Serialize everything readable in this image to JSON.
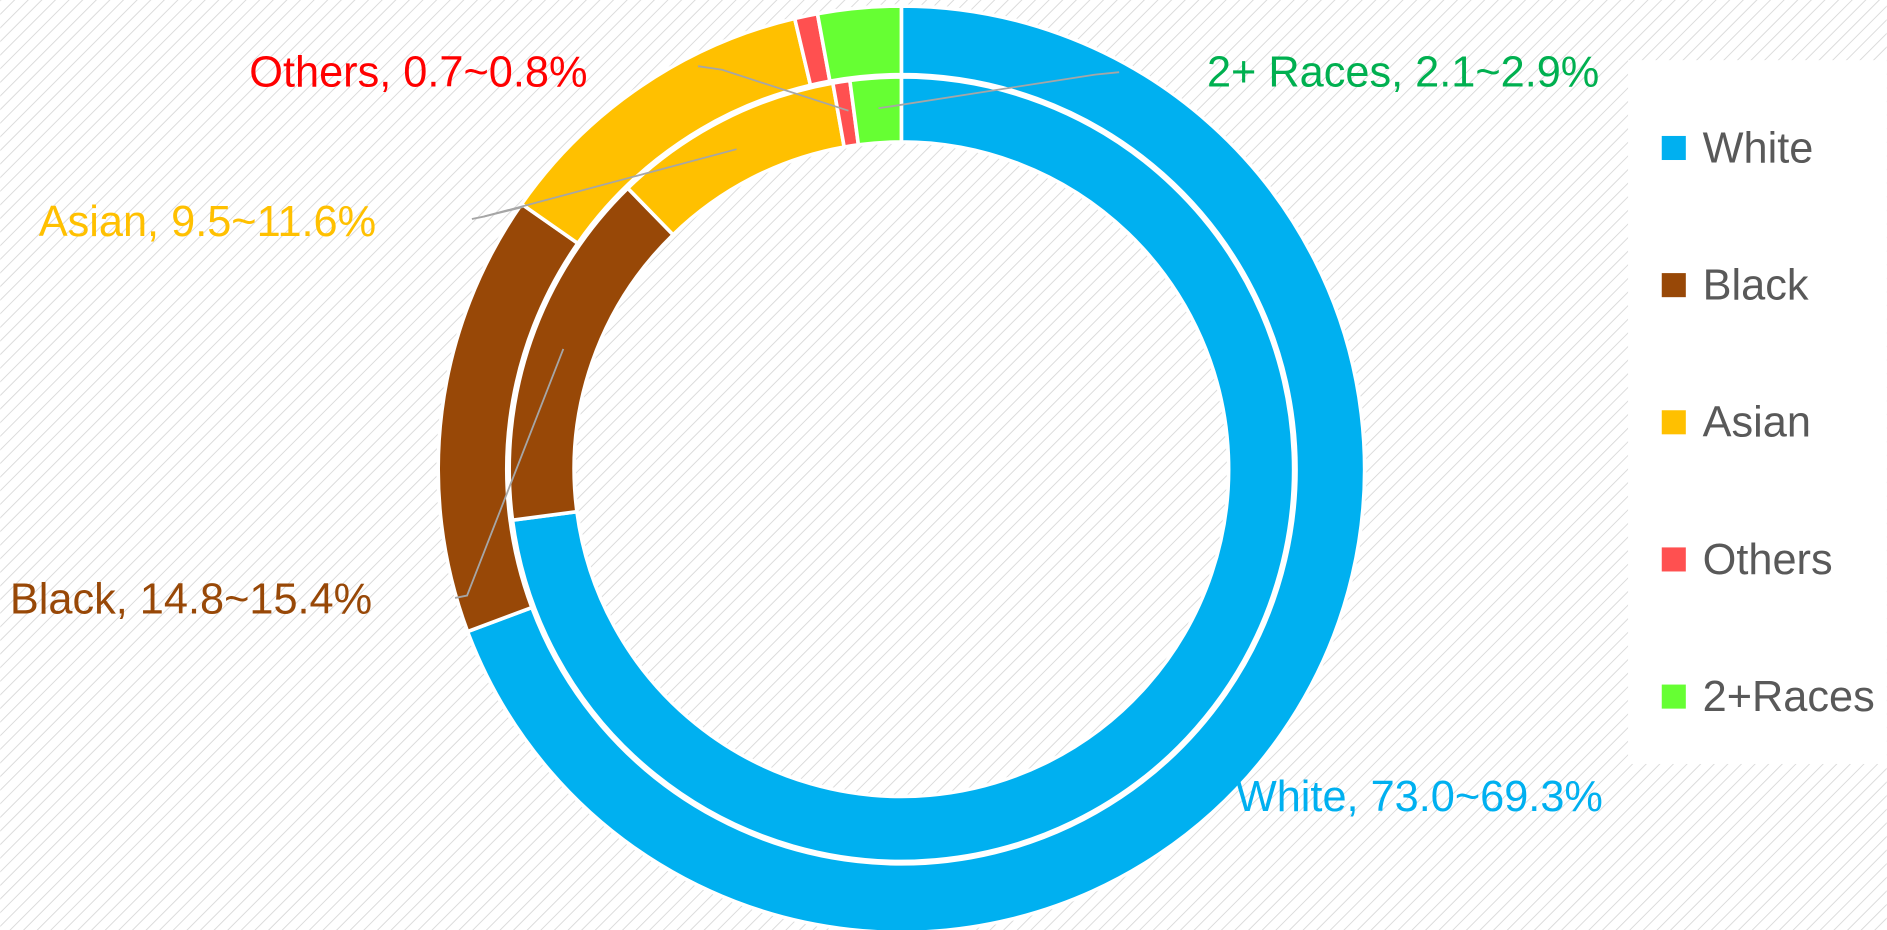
{
  "chart_data": {
    "type": "donut",
    "categories": [
      "White",
      "Black",
      "Asian",
      "Others",
      "2+Races"
    ],
    "colors": [
      "#00b0f0",
      "#984807",
      "#ffc000",
      "#ff5050",
      "#66ff33"
    ],
    "series": [
      {
        "values": [
          73.0,
          14.8,
          9.5,
          0.7,
          2.1
        ]
      },
      {
        "values": [
          69.3,
          15.4,
          11.6,
          0.8,
          2.9
        ]
      }
    ],
    "data_labels": [
      "White, 73.0~69.3%",
      "Black, 14.8~15.4%",
      "Asian, 9.5~11.6%",
      "Others,  0.7~0.8%",
      "2+ Races, 2.1~2.9%"
    ],
    "label_colors": [
      "#00b0f0",
      "#984807",
      "#ffc000",
      "#ff0000",
      "#00b050"
    ],
    "legend": "right"
  }
}
